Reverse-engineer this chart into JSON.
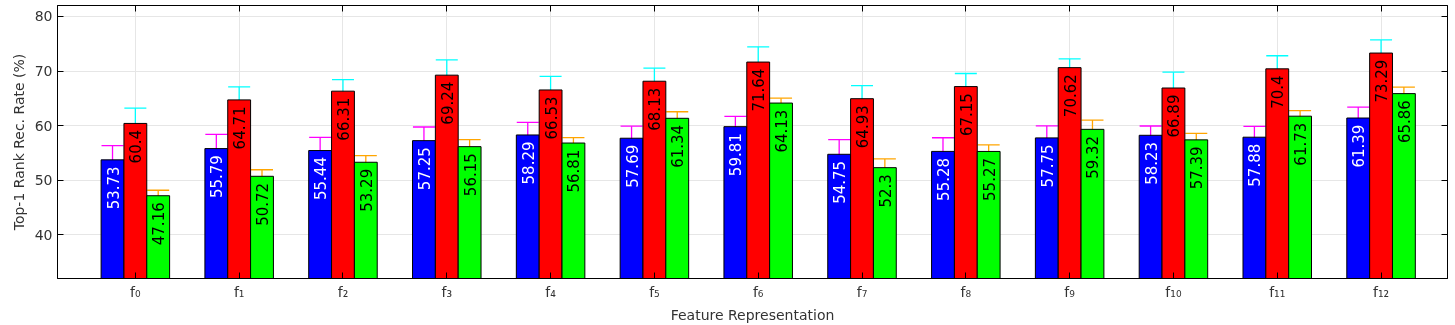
{
  "chart_data": {
    "type": "bar",
    "xlabel": "Feature Representation",
    "ylabel": "Top-1 Rank Rec. Rate (%)",
    "categories": [
      "f₀",
      "f₁",
      "f₂",
      "f₃",
      "f₄",
      "f₅",
      "f₆",
      "f₇",
      "f₈",
      "f₉",
      "f₁₀",
      "f₁₁",
      "f₁₂"
    ],
    "series": [
      {
        "color": "#0000ff",
        "values": [
          53.73,
          55.79,
          55.44,
          57.25,
          58.29,
          57.69,
          59.81,
          54.75,
          55.28,
          57.75,
          58.23,
          57.88,
          61.39
        ],
        "errors": [
          2.6,
          2.6,
          2.4,
          2.5,
          2.3,
          2.2,
          1.9,
          2.7,
          2.5,
          2.2,
          1.7,
          2.0,
          2.0
        ]
      },
      {
        "color": "#ff0000",
        "values": [
          60.4,
          64.71,
          66.31,
          69.24,
          66.53,
          68.13,
          71.64,
          64.93,
          67.15,
          70.62,
          66.89,
          70.4,
          73.29
        ],
        "errors": [
          2.8,
          2.4,
          2.1,
          2.8,
          2.5,
          2.4,
          2.8,
          2.4,
          2.4,
          1.6,
          2.9,
          2.4,
          2.4
        ]
      },
      {
        "color": "#00ff00",
        "values": [
          47.16,
          50.72,
          53.29,
          56.15,
          56.81,
          61.34,
          64.13,
          52.3,
          55.27,
          59.32,
          57.39,
          61.73,
          65.86
        ],
        "errors": [
          1.0,
          1.2,
          1.2,
          1.3,
          1.0,
          1.2,
          0.9,
          1.6,
          1.2,
          1.7,
          1.2,
          1.0,
          1.2
        ]
      }
    ],
    "ylim": [
      32,
      82
    ],
    "yticks": [
      40,
      50,
      60,
      70,
      80
    ],
    "grid": true,
    "data_labels": true
  }
}
